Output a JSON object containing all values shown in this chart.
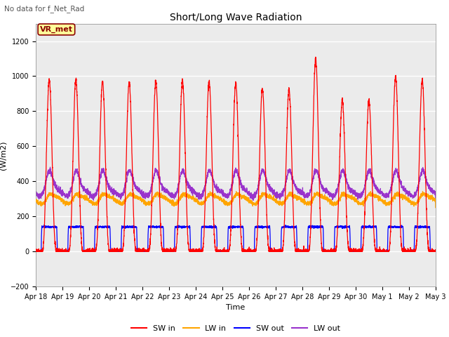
{
  "title": "Short/Long Wave Radiation",
  "subtitle": "No data for f_Net_Rad",
  "xlabel": "Time",
  "ylabel": "(W/m2)",
  "ylim": [
    -200,
    1300
  ],
  "yticks": [
    -200,
    0,
    200,
    400,
    600,
    800,
    1000,
    1200
  ],
  "xlim_start": 0,
  "xlim_end": 15,
  "xtick_labels": [
    "Apr 18",
    "Apr 19",
    "Apr 20",
    "Apr 21",
    "Apr 22",
    "Apr 23",
    "Apr 24",
    "Apr 25",
    "Apr 26",
    "Apr 27",
    "Apr 28",
    "Apr 29",
    "Apr 30",
    "May 1",
    "May 2",
    "May 3"
  ],
  "legend_labels": [
    "SW in",
    "LW in",
    "SW out",
    "LW out"
  ],
  "sw_in_color": "#FF0000",
  "lw_in_color": "#FFA500",
  "sw_out_color": "#0000FF",
  "lw_out_color": "#9933CC",
  "background_color": "#EBEBEB",
  "grid_color": "#FFFFFF",
  "annotation_text": "VR_met",
  "annotation_color": "#8B0000",
  "annotation_bg": "#FFFF99",
  "title_fontsize": 10,
  "axis_fontsize": 8,
  "tick_fontsize": 7
}
